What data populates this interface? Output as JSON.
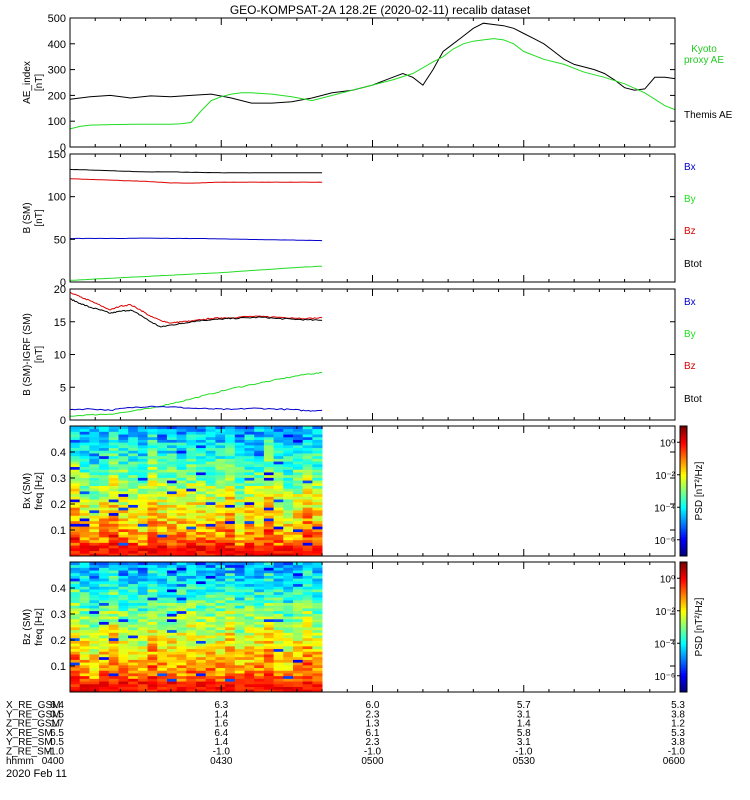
{
  "title": "GEO-KOMPSAT-2A 128.2E (2020-02-11) recalib dataset",
  "colors": {
    "black": "#000000",
    "green": "#22dd22",
    "blue": "#0000cc",
    "red": "#dd0000",
    "kyoto": "#22cc22"
  },
  "chart_data": [
    {
      "type": "line",
      "id": "ae",
      "ylabel_1": "AE_index",
      "ylabel_2": "[nT]",
      "ylim": [
        0,
        500
      ],
      "yticks": [
        "0",
        "100",
        "200",
        "300",
        "400",
        "500"
      ],
      "ytick_values": [
        0,
        100,
        200,
        300,
        400,
        500
      ],
      "xlim": [
        0,
        120
      ],
      "legend": [
        {
          "label": "Kyoto",
          "color": "#22cc22"
        },
        {
          "label": "proxy AE",
          "color": "#22cc22"
        },
        {
          "label": "Themis AE",
          "color": "#000000"
        }
      ],
      "series": [
        {
          "name": "Themis AE",
          "color": "#000000",
          "x": [
            0,
            4,
            8,
            12,
            16,
            20,
            24,
            28,
            32,
            36,
            40,
            44,
            48,
            52,
            56,
            60,
            62,
            64,
            66,
            68,
            70,
            72,
            74,
            76,
            78,
            80,
            82,
            84,
            86,
            88,
            90,
            92,
            94,
            96,
            98,
            100,
            102,
            104,
            106,
            108,
            110,
            112,
            114,
            116,
            118,
            120
          ],
          "y": [
            185,
            195,
            200,
            190,
            198,
            195,
            200,
            205,
            190,
            170,
            170,
            175,
            190,
            210,
            220,
            240,
            255,
            270,
            285,
            270,
            240,
            300,
            370,
            400,
            430,
            460,
            480,
            475,
            470,
            460,
            440,
            420,
            400,
            370,
            340,
            320,
            310,
            300,
            285,
            260,
            230,
            220,
            225,
            270,
            270,
            265
          ]
        },
        {
          "name": "Kyoto proxy AE",
          "color": "#22dd22",
          "x": [
            0,
            2,
            4,
            8,
            12,
            16,
            20,
            22,
            24,
            26,
            28,
            30,
            32,
            34,
            36,
            40,
            44,
            48,
            52,
            56,
            60,
            64,
            68,
            72,
            74,
            76,
            78,
            80,
            82,
            84,
            86,
            88,
            90,
            94,
            98,
            102,
            106,
            110,
            114,
            118,
            120
          ],
          "y": [
            70,
            80,
            85,
            87,
            88,
            88,
            88,
            90,
            95,
            140,
            180,
            195,
            205,
            210,
            210,
            205,
            195,
            180,
            200,
            220,
            240,
            260,
            285,
            330,
            350,
            380,
            400,
            410,
            415,
            420,
            415,
            400,
            370,
            340,
            320,
            290,
            270,
            245,
            210,
            160,
            145
          ]
        }
      ]
    },
    {
      "type": "line",
      "id": "bsm",
      "ylabel_1": "B (SM)",
      "ylabel_2": "[nT]",
      "ylim": [
        0,
        150
      ],
      "yticks": [
        "0",
        "50",
        "100",
        "150"
      ],
      "ytick_values": [
        0,
        50,
        100,
        150
      ],
      "xlim": [
        0,
        120
      ],
      "legend": [
        {
          "label": "Bx",
          "color": "#0000cc"
        },
        {
          "label": "By",
          "color": "#22dd22"
        },
        {
          "label": "Bz",
          "color": "#dd0000"
        },
        {
          "label": "Btot",
          "color": "#000000"
        }
      ],
      "series": [
        {
          "name": "Btot",
          "color": "#000000",
          "x": [
            0,
            5,
            10,
            15,
            20,
            25,
            30,
            35,
            40,
            45,
            50
          ],
          "y": [
            132,
            131,
            130,
            129,
            129,
            128.5,
            128,
            128,
            128,
            128,
            128
          ]
        },
        {
          "name": "Bz",
          "color": "#dd0000",
          "x": [
            0,
            5,
            10,
            15,
            20,
            25,
            30,
            35,
            40,
            45,
            50
          ],
          "y": [
            121,
            120,
            119,
            118,
            116,
            116,
            117,
            117,
            117,
            117,
            117
          ]
        },
        {
          "name": "Bx",
          "color": "#0000cc",
          "x": [
            0,
            5,
            10,
            15,
            20,
            25,
            30,
            35,
            40,
            45,
            50
          ],
          "y": [
            51,
            51,
            51,
            51.5,
            51,
            51,
            50.5,
            50,
            49.5,
            49,
            48.5
          ]
        },
        {
          "name": "By",
          "color": "#22dd22",
          "x": [
            0,
            5,
            10,
            15,
            20,
            25,
            30,
            35,
            40,
            45,
            50
          ],
          "y": [
            2,
            3.5,
            5,
            6.5,
            8,
            9.5,
            11,
            13,
            15,
            17,
            18.5
          ]
        }
      ]
    },
    {
      "type": "line",
      "id": "bsmigrf",
      "ylabel_1": "B (SM)-IGRF (SM)",
      "ylabel_2": "[nT]",
      "ylim": [
        0,
        20
      ],
      "yticks": [
        "0",
        "5",
        "10",
        "15",
        "20"
      ],
      "ytick_values": [
        0,
        5,
        10,
        15,
        20
      ],
      "xlim": [
        0,
        120
      ],
      "legend": [
        {
          "label": "Bx",
          "color": "#0000cc"
        },
        {
          "label": "By",
          "color": "#22dd22"
        },
        {
          "label": "Bz",
          "color": "#dd0000"
        },
        {
          "label": "Btot",
          "color": "#000000"
        }
      ],
      "series": [
        {
          "name": "Bz",
          "color": "#dd0000",
          "x": [
            0,
            2,
            4,
            6,
            8,
            10,
            12,
            14,
            16,
            18,
            20,
            22,
            24,
            26,
            28,
            30,
            32,
            35,
            38,
            41,
            44,
            47,
            50
          ],
          "y": [
            19.5,
            18.8,
            18.2,
            17.5,
            16.8,
            17.4,
            17.6,
            16.8,
            15.8,
            15.2,
            14.8,
            15,
            15.1,
            15.3,
            15.5,
            15.6,
            15.6,
            15.8,
            15.8,
            15.7,
            15.6,
            15.5,
            15.6
          ]
        },
        {
          "name": "Btot",
          "color": "#000000",
          "x": [
            0,
            2,
            4,
            6,
            8,
            10,
            12,
            14,
            16,
            18,
            20,
            22,
            24,
            26,
            28,
            30,
            32,
            35,
            38,
            41,
            44,
            47,
            50
          ],
          "y": [
            18.5,
            17.8,
            17.2,
            16.8,
            16.3,
            16.6,
            16.8,
            16,
            15,
            14.2,
            14.5,
            14.7,
            15,
            15.2,
            15.3,
            15.4,
            15.5,
            15.6,
            15.7,
            15.5,
            15.4,
            15.3,
            15.2
          ]
        },
        {
          "name": "By",
          "color": "#22dd22",
          "x": [
            0,
            4,
            8,
            12,
            16,
            20,
            24,
            28,
            32,
            36,
            40,
            44,
            47,
            50
          ],
          "y": [
            0.6,
            0.8,
            0.9,
            1.3,
            1.8,
            2.5,
            3.2,
            4,
            4.8,
            5.4,
            6,
            6.6,
            7,
            7.2
          ]
        },
        {
          "name": "Bx",
          "color": "#0000cc",
          "x": [
            0,
            4,
            8,
            12,
            16,
            20,
            24,
            28,
            32,
            36,
            40,
            44,
            47,
            50
          ],
          "y": [
            1.6,
            1.7,
            1.5,
            1.9,
            2.1,
            2,
            1.8,
            1.7,
            1.6,
            1.8,
            1.7,
            1.6,
            1.4,
            1.5
          ]
        }
      ]
    },
    {
      "type": "heatmap",
      "id": "bxspec",
      "ylabel_1": "Bx (SM)",
      "ylabel_2": "freq [Hz]",
      "ylim": [
        0,
        0.5
      ],
      "yticks": [
        "0.1",
        "0.2",
        "0.3",
        "0.4"
      ],
      "ytick_values": [
        0.1,
        0.2,
        0.3,
        0.4
      ],
      "xlim": [
        0,
        120
      ],
      "data_xlim": [
        0,
        50
      ],
      "colorbar_label": "PSD [nT²/Hz]",
      "colorbar_ticks": [
        "10⁰",
        "10⁻²",
        "10⁻⁴",
        "10⁻⁶"
      ],
      "colorbar_values": [
        0,
        -2,
        -4,
        -6
      ],
      "colorbar_range": [
        -7,
        1
      ]
    },
    {
      "type": "heatmap",
      "id": "bzspec",
      "ylabel_1": "Bz (SM)",
      "ylabel_2": "freq [Hz]",
      "ylim": [
        0,
        0.5
      ],
      "yticks": [
        "0.1",
        "0.2",
        "0.3",
        "0.4"
      ],
      "ytick_values": [
        0.1,
        0.2,
        0.3,
        0.4
      ],
      "xlim": [
        0,
        120
      ],
      "data_xlim": [
        0,
        50
      ],
      "colorbar_label": "PSD [nT²/Hz]",
      "colorbar_ticks": [
        "10⁰",
        "10⁻²",
        "10⁻⁴",
        "10⁻⁶"
      ],
      "colorbar_values": [
        0,
        -2,
        -4,
        -6
      ],
      "colorbar_range": [
        -7,
        1
      ]
    }
  ],
  "xaxis": {
    "tick_minutes": [
      0,
      30,
      60,
      90,
      120
    ],
    "rows": [
      {
        "label": "X_RE_GSM",
        "values": [
          "6.4",
          "6.3",
          "6.0",
          "5.7",
          "5.3"
        ]
      },
      {
        "label": "Y_RE_GSM",
        "values": [
          "0.5",
          "1.4",
          "2.3",
          "3.1",
          "3.8"
        ]
      },
      {
        "label": "Z_RE_GSM",
        "values": [
          "1.7",
          "1.6",
          "1.3",
          "1.4",
          "1.2"
        ]
      },
      {
        "label": "X_RE_SM",
        "values": [
          "6.5",
          "6.4",
          "6.1",
          "5.8",
          "5.3"
        ]
      },
      {
        "label": "Y_RE_SM",
        "values": [
          "0.5",
          "1.4",
          "2.3",
          "3.1",
          "3.8"
        ]
      },
      {
        "label": "Z_RE_SM",
        "values": [
          "-1.0",
          "-1.0",
          "-1.0",
          "-1.0",
          "-1.0"
        ]
      },
      {
        "label": "hhmm",
        "values": [
          "0400",
          "0430",
          "0500",
          "0530",
          "0600"
        ]
      }
    ],
    "date": "2020 Feb 11"
  }
}
